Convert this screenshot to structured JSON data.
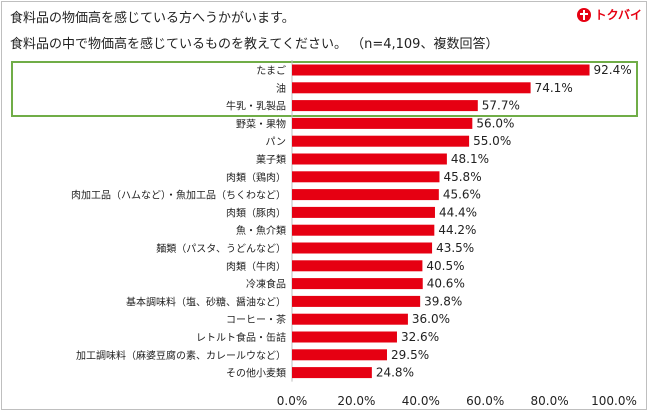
{
  "header": {
    "title_line1": "食料品の物価高を感じている方へうかがいます。",
    "title_line2": "食料品の中で物価高を感じているものを教えてください。 （n=4,109、複数回答）",
    "logo_text": "トクバイ"
  },
  "colors": {
    "bar": "#e60012",
    "highlight": "#70ad47",
    "logo": "#e60012"
  },
  "chart_data": {
    "type": "bar",
    "orientation": "horizontal",
    "title": "食料品の中で物価高を感じているものを教えてください。",
    "xlabel": "",
    "ylabel": "",
    "xlim": [
      0,
      100
    ],
    "xticks": [
      "0.0%",
      "20.0%",
      "40.0%",
      "60.0%",
      "80.0%",
      "100.0%"
    ],
    "grid": false,
    "highlighted": [
      "たまご",
      "油",
      "牛乳・乳製品"
    ],
    "categories": [
      "たまご",
      "油",
      "牛乳・乳製品",
      "野菜・果物",
      "パン",
      "菓子類",
      "肉類（鶏肉）",
      "肉加工品（ハムなど）・魚加工品（ちくわなど）",
      "肉類（豚肉）",
      "魚・魚介類",
      "麺類（パスタ、うどんなど）",
      "肉類（牛肉）",
      "冷凍食品",
      "基本調味料（塩、砂糖、醤油など）",
      "コーヒー・茶",
      "レトルト食品・缶詰",
      "加工調味料（麻婆豆腐の素、カレールウなど）",
      "その他小麦類"
    ],
    "values": [
      92.4,
      74.1,
      57.7,
      56.0,
      55.0,
      48.1,
      45.8,
      45.6,
      44.4,
      44.2,
      43.5,
      40.5,
      40.6,
      39.8,
      36.0,
      32.6,
      29.5,
      24.8
    ],
    "value_labels": [
      "92.4%",
      "74.1%",
      "57.7%",
      "56.0%",
      "55.0%",
      "48.1%",
      "45.8%",
      "45.6%",
      "44.4%",
      "44.2%",
      "43.5%",
      "40.5%",
      "40.6%",
      "39.8%",
      "36.0%",
      "32.6%",
      "29.5%",
      "24.8%"
    ]
  }
}
